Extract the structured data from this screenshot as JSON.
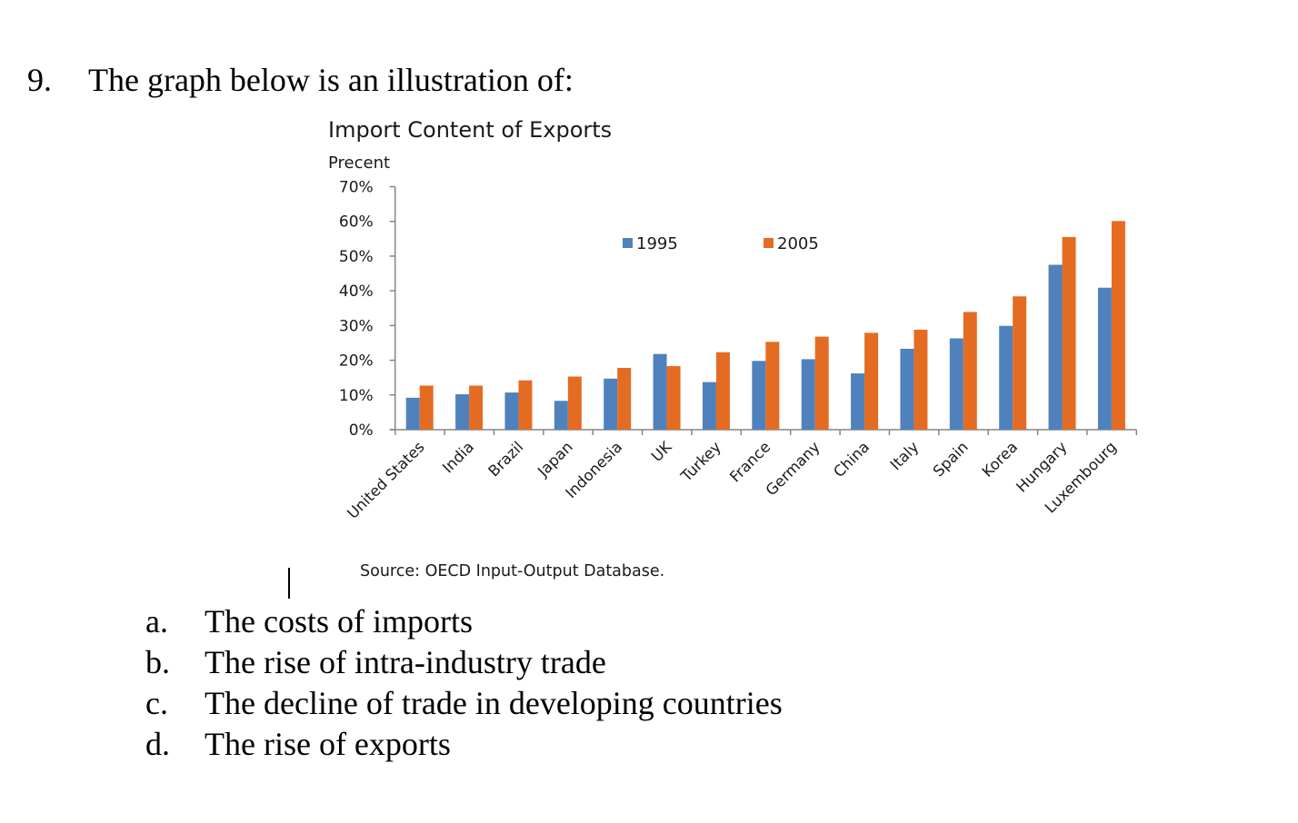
{
  "question": {
    "number": "9.",
    "text": "The graph below is an illustration of:"
  },
  "chart_data": {
    "type": "bar",
    "title": "Import Content of Exports",
    "ylabel": "Precent",
    "xlabel": "",
    "source": "Source: OECD Input-Output Database.",
    "ylim": [
      0,
      70
    ],
    "yticks": [
      0,
      10,
      20,
      30,
      40,
      50,
      60,
      70
    ],
    "ytick_labels": [
      "0%",
      "10%",
      "20%",
      "30%",
      "40%",
      "50%",
      "60%",
      "70%"
    ],
    "grid": false,
    "legend_position": "top-center",
    "categories": [
      "United States",
      "India",
      "Brazil",
      "Japan",
      "Indonesia",
      "UK",
      "Turkey",
      "France",
      "Germany",
      "China",
      "Italy",
      "Spain",
      "Korea",
      "Hungary",
      "Luxembourg"
    ],
    "series": [
      {
        "name": "1995",
        "color": "#4f81bd",
        "values": [
          9.2,
          10.2,
          10.7,
          8.3,
          14.7,
          21.8,
          13.7,
          19.8,
          20.3,
          16.2,
          23.3,
          26.3,
          29.9,
          47.5,
          40.9
        ]
      },
      {
        "name": "2005",
        "color": "#e46c22",
        "values": [
          12.7,
          12.7,
          14.2,
          15.3,
          17.8,
          18.3,
          22.3,
          25.3,
          26.8,
          27.9,
          28.8,
          33.9,
          38.4,
          55.5,
          60.1
        ]
      }
    ]
  },
  "options": [
    {
      "letter": "a.",
      "text": "The costs of imports"
    },
    {
      "letter": "b.",
      "text": "The rise of intra-industry trade"
    },
    {
      "letter": "c.",
      "text": "The decline of trade in developing countries"
    },
    {
      "letter": "d.",
      "text": "The rise of exports"
    }
  ]
}
